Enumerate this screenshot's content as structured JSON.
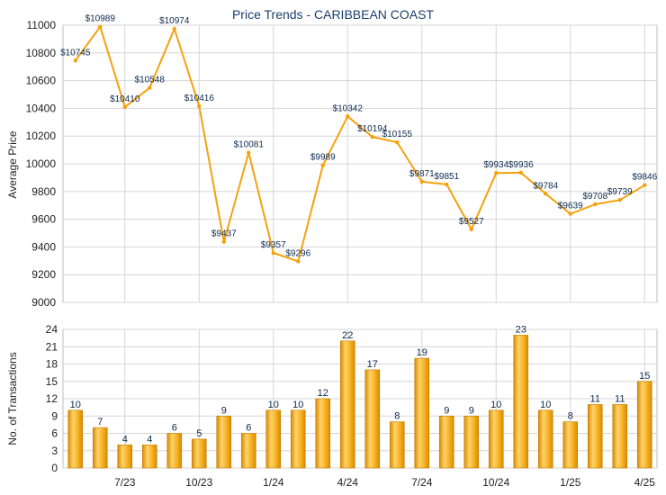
{
  "chart_data": [
    {
      "type": "line",
      "title": "Price Trends - CARIBBEAN COAST",
      "ylabel": "Average Price",
      "ylim": [
        9000,
        11000
      ],
      "yticks": [
        9000,
        9200,
        9400,
        9600,
        9800,
        10000,
        10200,
        10400,
        10600,
        10800,
        11000
      ],
      "grid": true,
      "color": "#f5a10f",
      "values": [
        10745,
        10989,
        10410,
        10548,
        10974,
        10416,
        9437,
        10081,
        9357,
        9296,
        9989,
        10342,
        10194,
        10155,
        9871,
        9851,
        9527,
        9934,
        9936,
        9784,
        9639,
        9708,
        9739,
        9846
      ],
      "labels": [
        "$10745",
        "$10989",
        "$10410",
        "$10548",
        "$10974",
        "$10416",
        "$9437",
        "$10081",
        "$9357",
        "$9296",
        "$9989",
        "$10342",
        "$10194",
        "$10155",
        "$9871",
        "$9851",
        "$9527",
        "$9934",
        "$9936",
        "$9784",
        "$9639",
        "$9708",
        "$9739",
        "$9846"
      ]
    },
    {
      "type": "bar",
      "ylabel": "No. of Transactions",
      "ylim": [
        0,
        24
      ],
      "yticks": [
        0,
        3,
        6,
        9,
        12,
        15,
        18,
        21,
        24
      ],
      "grid": true,
      "color": "#f5a10f",
      "values": [
        10,
        7,
        4,
        4,
        6,
        5,
        9,
        6,
        10,
        10,
        12,
        22,
        17,
        8,
        19,
        9,
        9,
        10,
        23,
        10,
        8,
        11,
        11,
        15
      ],
      "xtick_labels": [
        {
          "label": "7/23",
          "index": 2
        },
        {
          "label": "10/23",
          "index": 5
        },
        {
          "label": "1/24",
          "index": 8
        },
        {
          "label": "4/24",
          "index": 11
        },
        {
          "label": "7/24",
          "index": 14
        },
        {
          "label": "10/24",
          "index": 17
        },
        {
          "label": "1/25",
          "index": 20
        },
        {
          "label": "4/25",
          "index": 23
        }
      ]
    }
  ]
}
